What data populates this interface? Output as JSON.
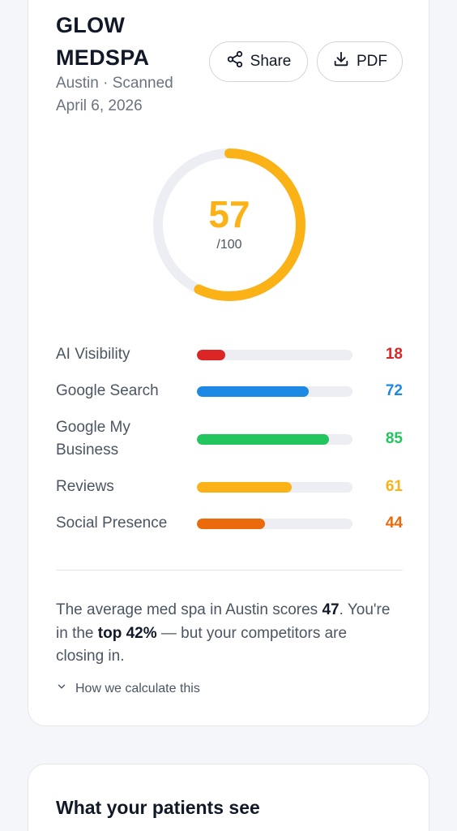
{
  "business": {
    "name": "GLOW MEDSPA",
    "location_scan": "Austin · Scanned April 6, 2026"
  },
  "actions": {
    "share_label": "Share",
    "pdf_label": "PDF"
  },
  "score": {
    "value": "57",
    "max_label": "/100",
    "fraction": 0.57,
    "color": "#fbb216"
  },
  "metrics": [
    {
      "label": "AI Visibility",
      "value": "18",
      "fraction": 0.18,
      "color": "#dc2626"
    },
    {
      "label": "Google Search",
      "value": "72",
      "fraction": 0.72,
      "color": "#1e88e5"
    },
    {
      "label": "Google My Business",
      "value": "85",
      "fraction": 0.85,
      "color": "#22c55e"
    },
    {
      "label": "Reviews",
      "value": "61",
      "fraction": 0.61,
      "color": "#fbb216"
    },
    {
      "label": "Social Presence",
      "value": "44",
      "fraction": 0.44,
      "color": "#ea6a0c"
    }
  ],
  "summary": {
    "part1": "The average med spa in Austin scores ",
    "avg_score": "47",
    "part2": ". You're in the ",
    "rank": "top 42%",
    "part3": " — but your competitors are closing in."
  },
  "calc_link": "How we calculate this",
  "next_section": {
    "title": "What your patients see"
  }
}
